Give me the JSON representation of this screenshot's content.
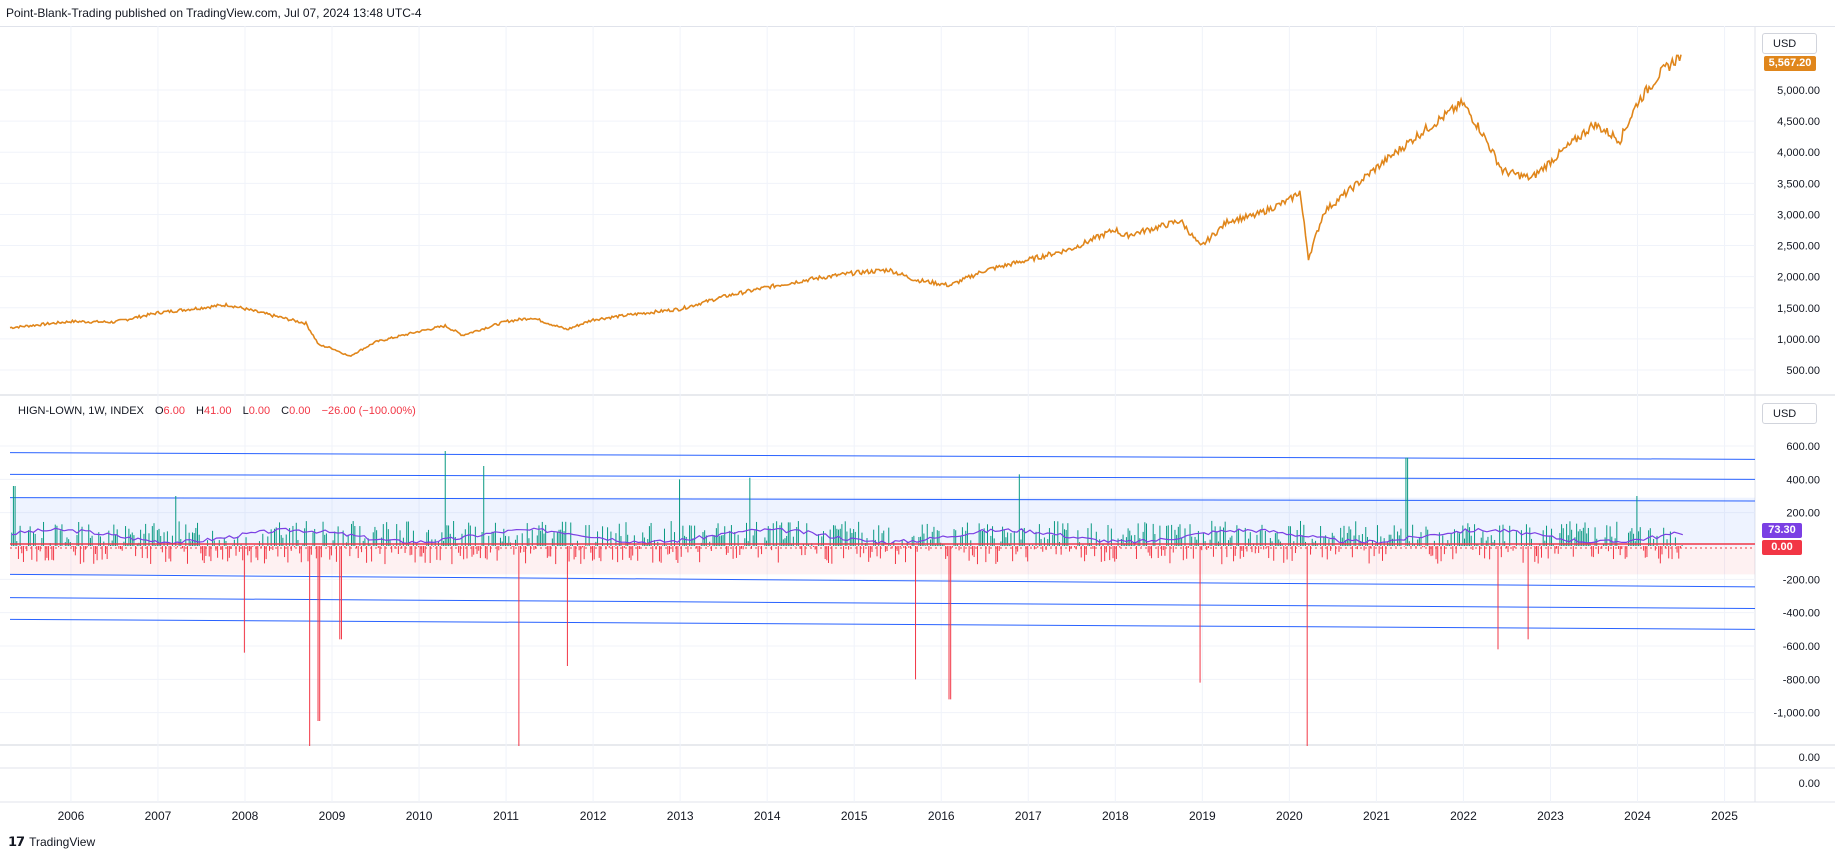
{
  "header": {
    "published": "Point-Blank-Trading published on TradingView.com, Jul 07, 2024 13:48 UTC-4"
  },
  "price_pane": {
    "currency": "USD",
    "last_price_tag": "5,567.20",
    "line_color": "#e0861b"
  },
  "indicator_pane": {
    "currency": "USD",
    "name": "HIGN-LOWN, 1W, INDEX",
    "o_label": "O",
    "o_value": "6.00",
    "h_label": "H",
    "h_value": "41.00",
    "l_label": "L",
    "l_value": "0.00",
    "c_label": "C",
    "c_value": "0.00",
    "change": "−26.00 (−100.00%)",
    "ma_tag": "73.30",
    "last_tag": "0.00",
    "ma_color": "#7b3fe4",
    "up_color": "#089981",
    "down_color": "#f23645",
    "channel_color": "#2962ff"
  },
  "sub_pane": {
    "tick_1": "0.00",
    "tick_2": "0.00"
  },
  "footer": {
    "logo_text": "TradingView"
  },
  "chart_data": [
    {
      "type": "line",
      "series": [
        {
          "x": [
            2005.3,
            2006.0,
            2006.5,
            2007.0,
            2007.5,
            2007.8,
            2008.3,
            2008.7,
            2008.85,
            2009.0,
            2009.2,
            2009.5,
            2010.0,
            2010.3,
            2010.5,
            2011.0,
            2011.3,
            2011.7,
            2012.0,
            2012.5,
            2013.0,
            2013.5,
            2014.0,
            2014.5,
            2015.0,
            2015.4,
            2015.7,
            2016.1,
            2016.5,
            2017.0,
            2017.5,
            2018.0,
            2018.1,
            2018.5,
            2018.75,
            2018.98,
            2019.3,
            2019.6,
            2020.0,
            2020.12,
            2020.22,
            2020.4,
            2020.7,
            2021.0,
            2021.5,
            2021.99,
            2022.2,
            2022.45,
            2022.78,
            2023.0,
            2023.5,
            2023.8,
            2024.0,
            2024.25,
            2024.5
          ],
          "y": [
            1180,
            1280,
            1270,
            1420,
            1500,
            1550,
            1380,
            1250,
            900,
            850,
            720,
            950,
            1120,
            1210,
            1060,
            1280,
            1340,
            1150,
            1310,
            1400,
            1480,
            1680,
            1830,
            1960,
            2060,
            2110,
            1950,
            1860,
            2100,
            2270,
            2450,
            2760,
            2650,
            2800,
            2900,
            2480,
            2900,
            2980,
            3230,
            3370,
            2300,
            3050,
            3400,
            3750,
            4300,
            4790,
            4350,
            3700,
            3580,
            3850,
            4450,
            4200,
            4800,
            5250,
            5567
          ]
        }
      ],
      "ylim": [
        500,
        5600
      ],
      "y_ticks": [
        "500.00",
        "1,000.00",
        "1,500.00",
        "2,000.00",
        "2,500.00",
        "3,000.00",
        "3,500.00",
        "4,000.00",
        "4,500.00",
        "5,000.00"
      ],
      "x_ticks": [
        "2006",
        "2007",
        "2008",
        "2009",
        "2010",
        "2011",
        "2012",
        "2013",
        "2014",
        "2015",
        "2016",
        "2017",
        "2018",
        "2019",
        "2020",
        "2021",
        "2022",
        "2023",
        "2024",
        "2025"
      ]
    },
    {
      "type": "bar",
      "spikes": [
        {
          "x": 2005.35,
          "y": 360
        },
        {
          "x": 2007.2,
          "y": 300
        },
        {
          "x": 2008.0,
          "y": -640
        },
        {
          "x": 2008.75,
          "y": -1200
        },
        {
          "x": 2008.85,
          "y": -1050
        },
        {
          "x": 2009.1,
          "y": -560
        },
        {
          "x": 2010.3,
          "y": 570
        },
        {
          "x": 2010.75,
          "y": 480
        },
        {
          "x": 2011.15,
          "y": -1200
        },
        {
          "x": 2011.7,
          "y": -720
        },
        {
          "x": 2013.0,
          "y": 400
        },
        {
          "x": 2013.8,
          "y": 410
        },
        {
          "x": 2015.7,
          "y": -800
        },
        {
          "x": 2016.1,
          "y": -920
        },
        {
          "x": 2016.9,
          "y": 430
        },
        {
          "x": 2018.98,
          "y": -820
        },
        {
          "x": 2020.2,
          "y": -1200
        },
        {
          "x": 2021.35,
          "y": 530
        },
        {
          "x": 2022.4,
          "y": -620
        },
        {
          "x": 2022.75,
          "y": -560
        },
        {
          "x": 2024.0,
          "y": 300
        }
      ],
      "ma_level": 73.3,
      "ylim": [
        -1200,
        700
      ],
      "y_ticks": [
        "600.00",
        "400.00",
        "200.00",
        "-200.00",
        "-400.00",
        "-600.00",
        "-800.00",
        "-1,000.00"
      ],
      "channels": [
        {
          "y0": 560,
          "y1": 520
        },
        {
          "y0": 430,
          "y1": 400
        },
        {
          "y0": 290,
          "y1": 270
        },
        {
          "y0": -170,
          "y1": -245
        },
        {
          "y0": -310,
          "y1": -375
        },
        {
          "y0": -440,
          "y1": -500
        }
      ],
      "bands": {
        "upper": 290,
        "lower": -170
      }
    }
  ]
}
